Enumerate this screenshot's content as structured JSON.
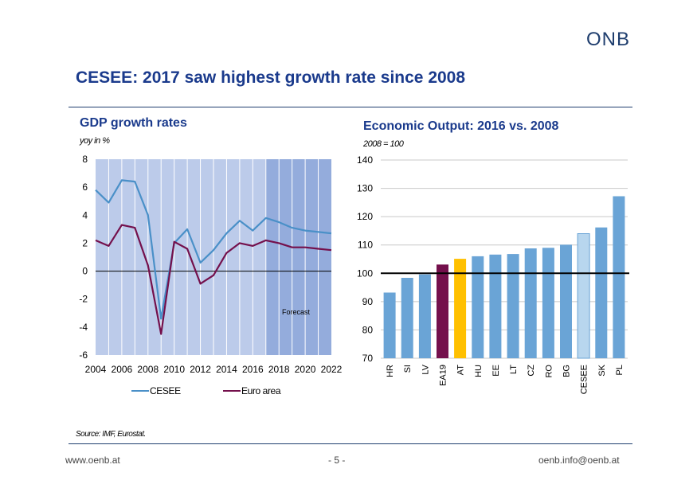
{
  "logo": "ONB",
  "slide_title": "CESEE: 2017 saw highest growth rate since 2008",
  "source": "Source: IMF, Eurostat.",
  "footer": {
    "left": "www.oenb.at",
    "center": "- 5 -",
    "right": "oenb.info@oenb.at"
  },
  "chart_data": [
    {
      "type": "line",
      "title": "GDP growth rates",
      "ylabel": "yoy in %",
      "xlim": [
        2004,
        2022
      ],
      "ylim": [
        -6,
        8
      ],
      "yticks": [
        "8",
        "6",
        "4",
        "2",
        "0",
        "-2",
        "-4",
        "-6"
      ],
      "xticks": [
        "2004",
        "2006",
        "2008",
        "2010",
        "2012",
        "2014",
        "2016",
        "2018",
        "2020",
        "2022"
      ],
      "annotation": "Forecast",
      "forecast_from": 2017,
      "colors": {
        "forecast_band": "#94acdc",
        "plot_bg": "#bccbea",
        "gridline": "#ffffff"
      },
      "x": [
        2004,
        2005,
        2006,
        2007,
        2008,
        2009,
        2010,
        2011,
        2012,
        2013,
        2014,
        2015,
        2016,
        2017,
        2018,
        2019,
        2020,
        2021,
        2022
      ],
      "series": [
        {
          "name": "CESEE",
          "color": "#4a90c8",
          "values": [
            5.8,
            4.9,
            6.5,
            6.4,
            4.0,
            -3.4,
            2.0,
            3.0,
            0.6,
            1.5,
            2.7,
            3.6,
            2.9,
            3.8,
            3.5,
            3.1,
            2.9,
            2.8,
            2.7
          ]
        },
        {
          "name": "Euro area",
          "color": "#74104c",
          "values": [
            2.2,
            1.8,
            3.3,
            3.1,
            0.4,
            -4.5,
            2.1,
            1.6,
            -0.9,
            -0.3,
            1.3,
            2.0,
            1.8,
            2.2,
            2.0,
            1.7,
            1.7,
            1.6,
            1.5
          ]
        }
      ],
      "legend_placement": "bottom"
    },
    {
      "type": "bar",
      "title": "Economic Output: 2016 vs. 2008",
      "ylabel": "2008 = 100",
      "ylim": [
        70,
        140
      ],
      "yticks": [
        "140",
        "130",
        "120",
        "110",
        "100",
        "90",
        "80",
        "70"
      ],
      "reference_line": 100,
      "categories": [
        "HR",
        "SI",
        "LV",
        "EA19",
        "AT",
        "HU",
        "EE",
        "LT",
        "CZ",
        "RO",
        "BG",
        "CESEE",
        "SK",
        "PL"
      ],
      "values": [
        93.2,
        98.4,
        99.6,
        103.1,
        105.1,
        106.0,
        106.6,
        106.8,
        108.8,
        109.0,
        110.1,
        114.0,
        116.2,
        127.2
      ],
      "colors": {
        "default": "#6aa4d6",
        "EA19": "#74104c",
        "AT": "#ffc000",
        "CESEE": "#b8d6ee",
        "plot_bg": "#ffffff",
        "gridline": "#c8c8c8"
      }
    }
  ]
}
